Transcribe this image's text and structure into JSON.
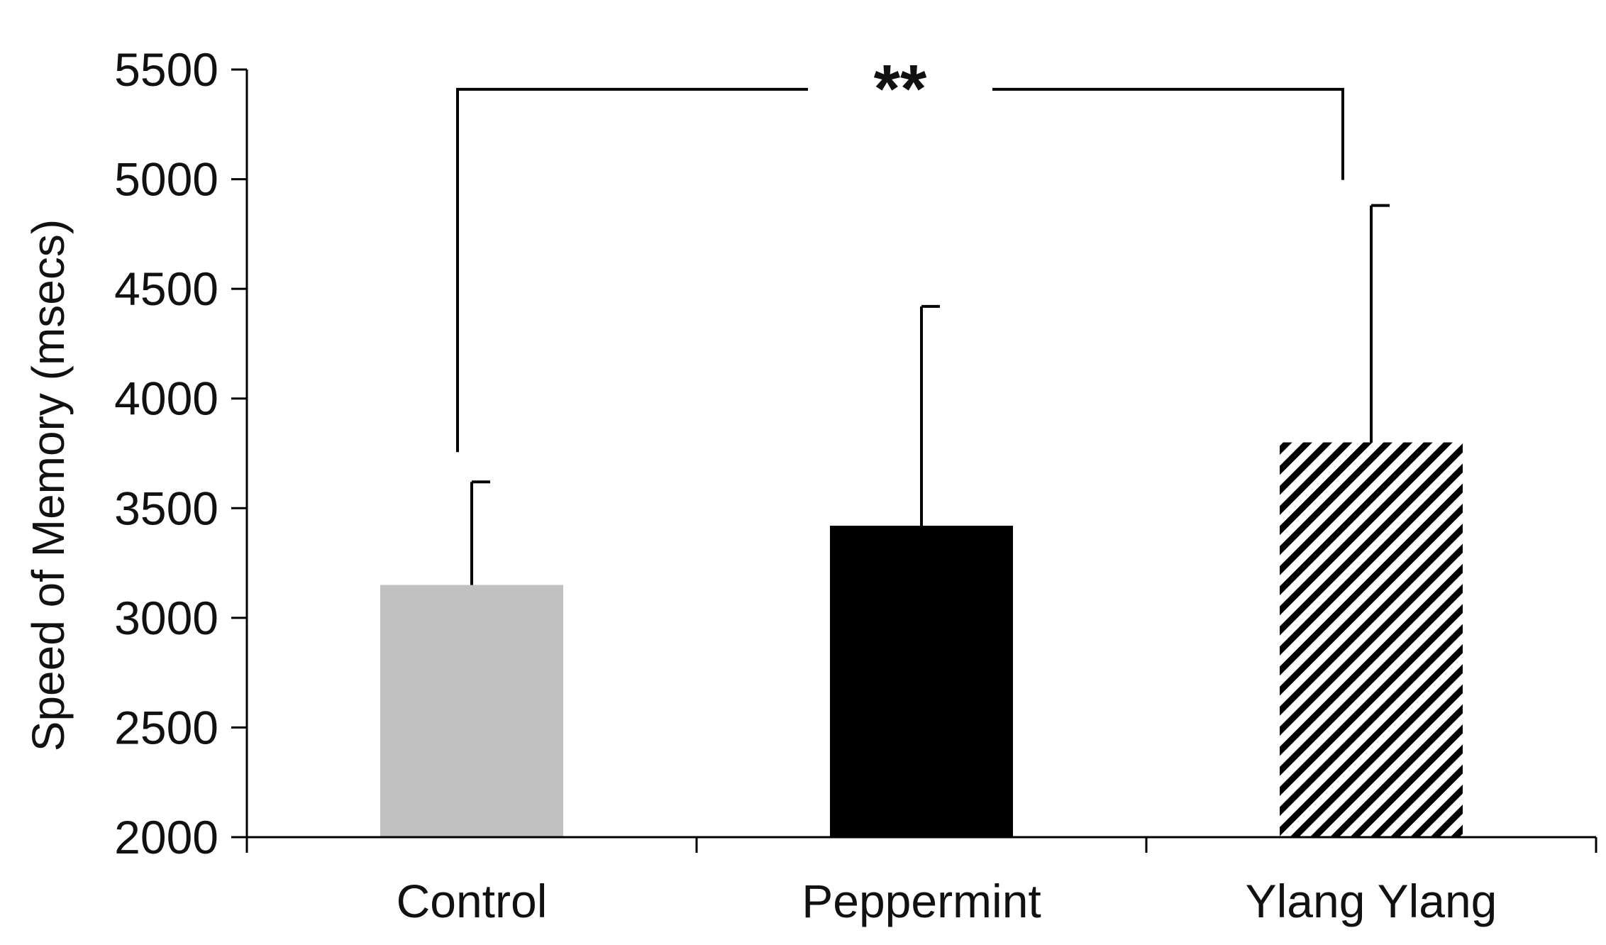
{
  "chart_data": {
    "type": "bar",
    "title": "",
    "xlabel": "",
    "ylabel": "Speed of Memory (msecs)",
    "ylim": [
      2000,
      5500
    ],
    "yticks": [
      2000,
      2500,
      3000,
      3500,
      4000,
      4500,
      5000,
      5500
    ],
    "grid": false,
    "legend": "none",
    "categories": [
      "Control",
      "Peppermint",
      "Ylang Ylang"
    ],
    "values": [
      3150,
      3420,
      3800
    ],
    "errors_upper": [
      470,
      1000,
      1080
    ],
    "bar_styles": [
      {
        "fill": "#c0c0c0",
        "pattern": "solid"
      },
      {
        "fill": "#000000",
        "pattern": "solid"
      },
      {
        "fill": "#000000",
        "pattern": "diagonal-hatch"
      }
    ],
    "annotations": [
      {
        "type": "significance-bracket",
        "from": "Control",
        "to": "Ylang Ylang",
        "label": "**",
        "y_level": 5410
      }
    ]
  }
}
